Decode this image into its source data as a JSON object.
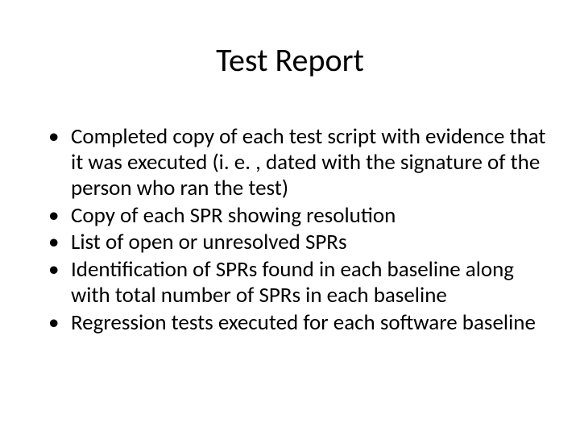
{
  "slide": {
    "title": "Test Report",
    "title_fontsize": 40,
    "title_color": "#000000",
    "background_color": "#ffffff",
    "body_fontsize": 27,
    "body_color": "#000000",
    "bullets": [
      "Completed copy of each test script with evidence that it was executed (i. e. , dated with the signature of the person who ran the test)",
      "Copy of each SPR showing resolution",
      "List of open or unresolved SPRs",
      "Identification of SPRs found in each baseline along with total number of SPRs in each baseline",
      "Regression tests executed for each software baseline"
    ]
  }
}
